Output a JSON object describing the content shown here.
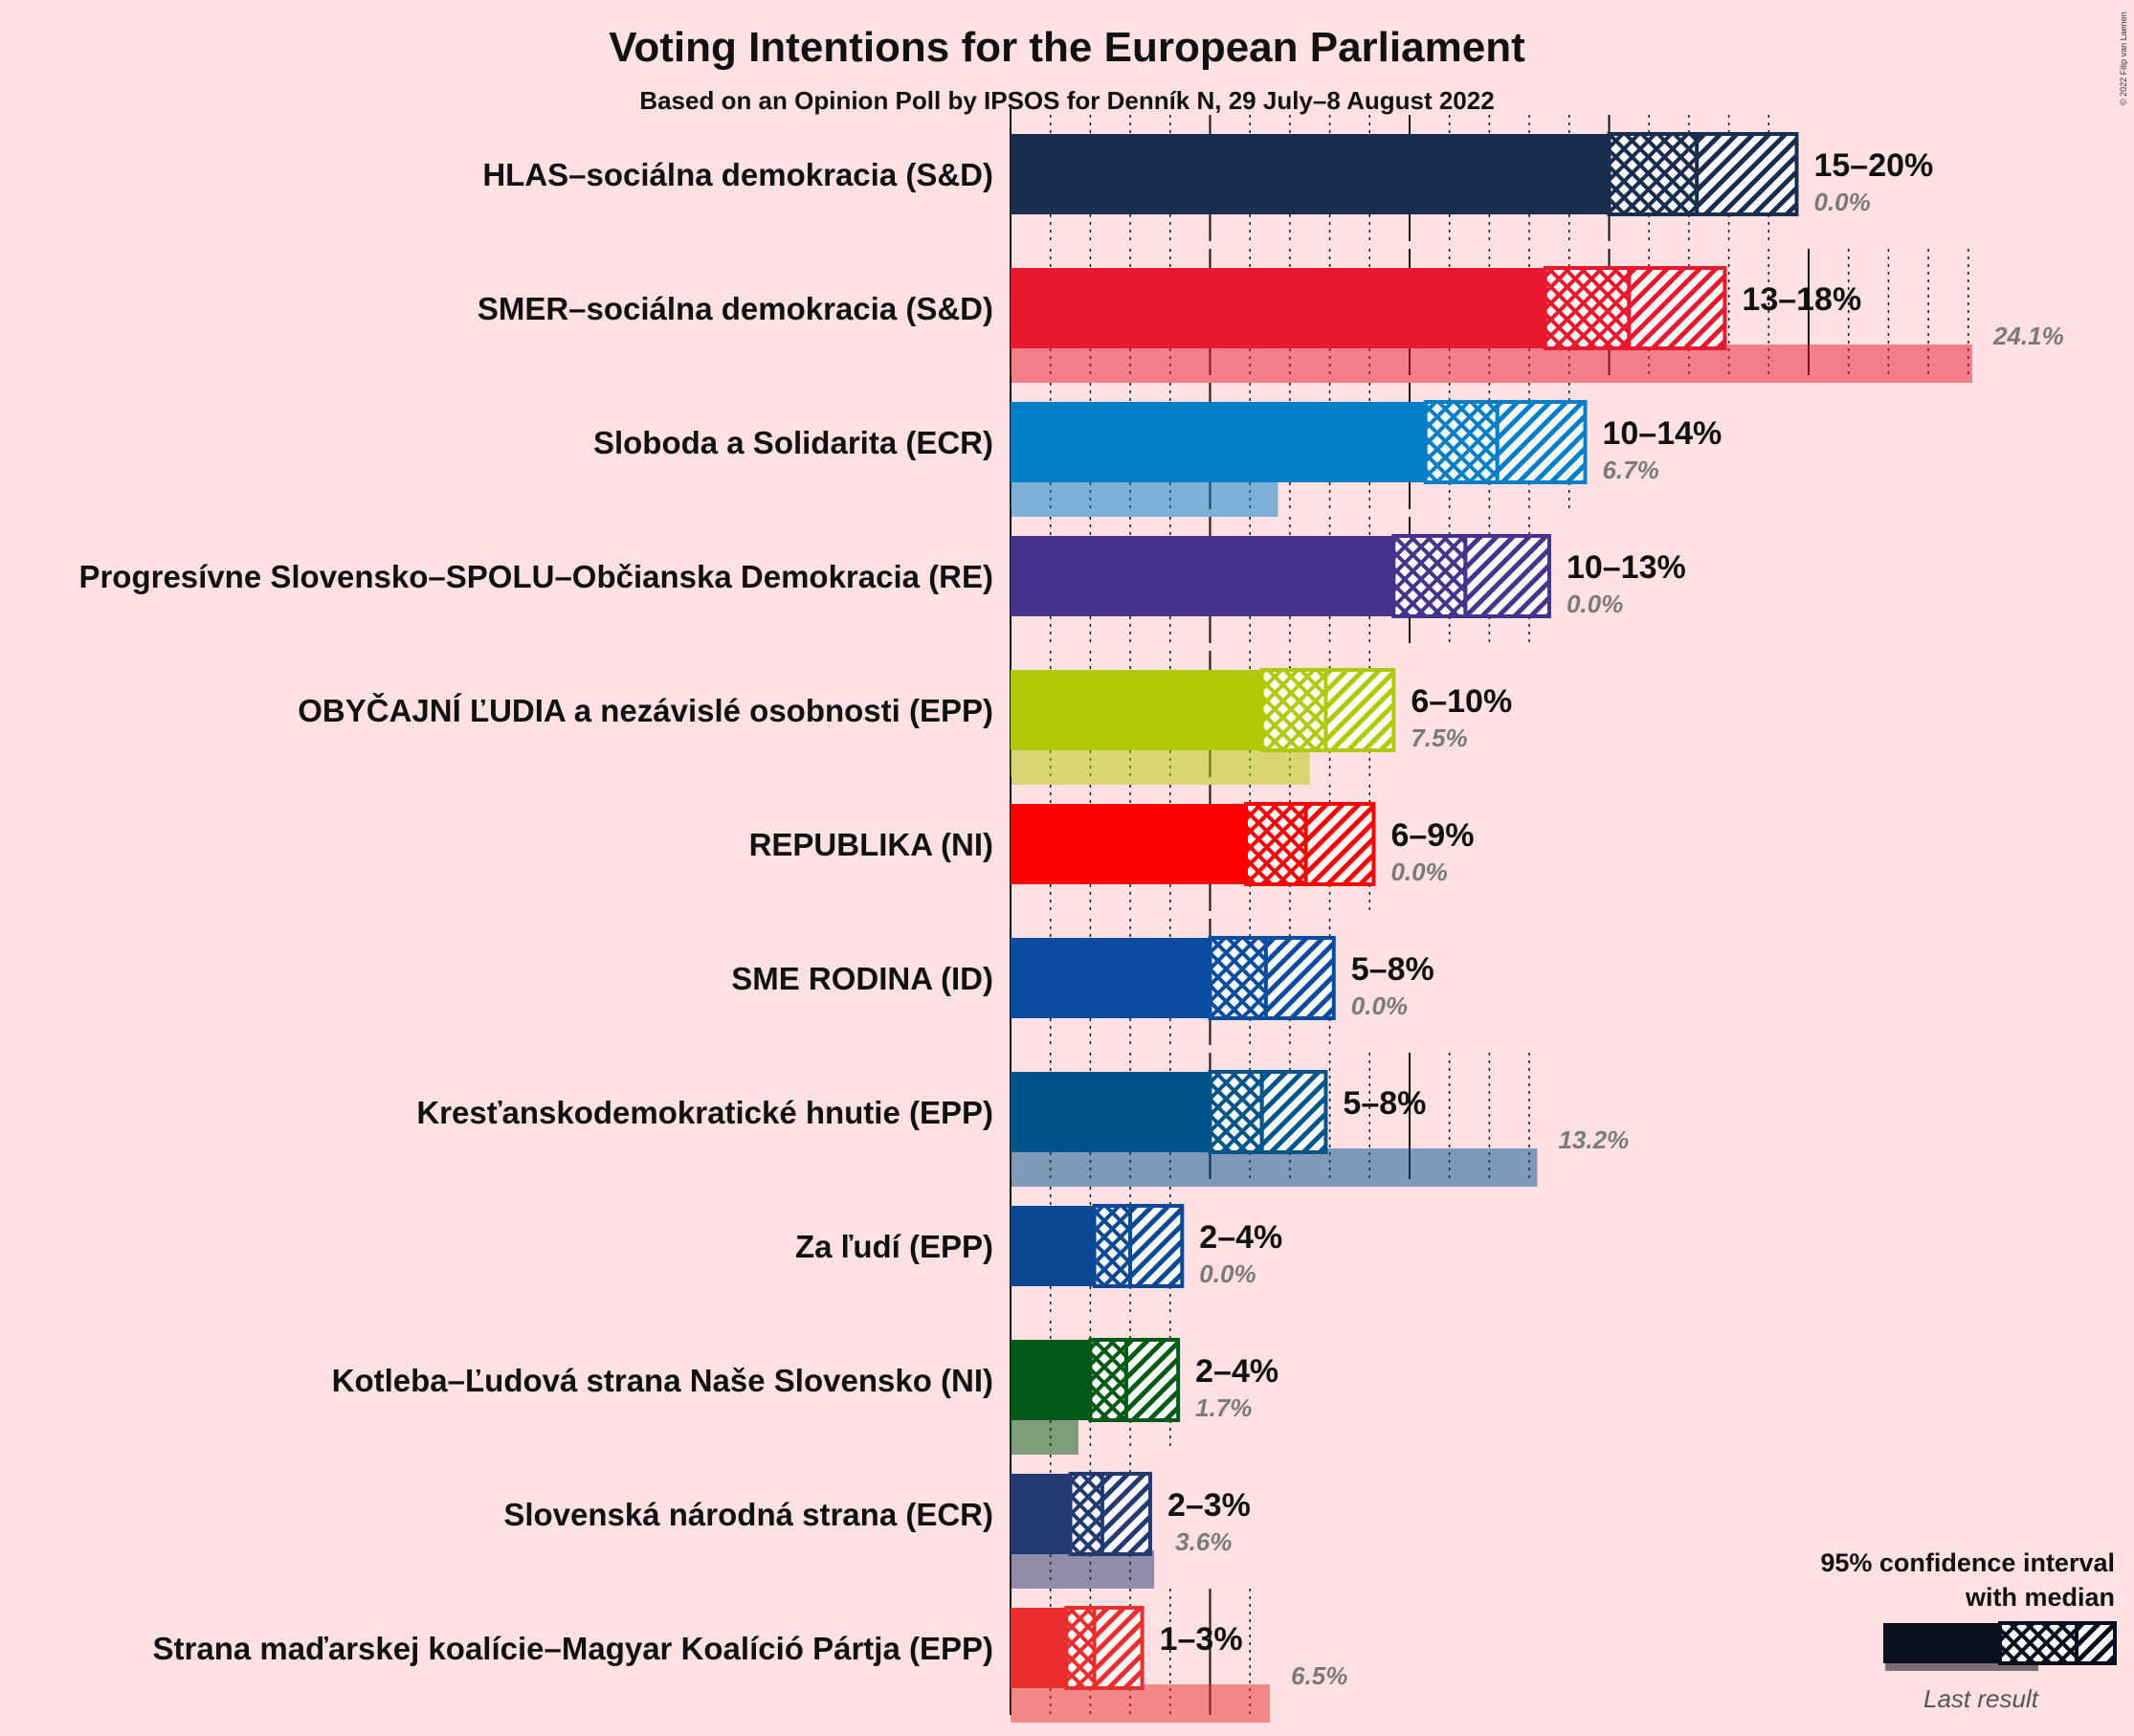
{
  "chart_data": {
    "type": "bar",
    "title": "Voting Intentions for the European Parliament",
    "subtitle": "Based on an Opinion Poll by IPSOS for Denník N, 29 July–8 August 2022",
    "xlim": [
      0,
      28
    ],
    "grid": true,
    "legend_position": "bottom-right",
    "parties": [
      {
        "name": "HLAS–sociálna demokracia (S&D)",
        "color": "#1B2D4F",
        "low": 15.0,
        "median": 17.2,
        "high": 19.7,
        "range_label": "15–20%",
        "last_result": 0.0,
        "last_label": "0.0%"
      },
      {
        "name": "SMER–sociálna demokracia (S&D)",
        "color": "#E8192E",
        "low": 13.4,
        "median": 15.5,
        "high": 17.9,
        "range_label": "13–18%",
        "last_result": 24.1,
        "last_label": "24.1%"
      },
      {
        "name": "Sloboda a Solidarita (ECR)",
        "color": "#007FC8",
        "low": 10.4,
        "median": 12.2,
        "high": 14.4,
        "range_label": "10–14%",
        "last_result": 6.7,
        "last_label": "6.7%"
      },
      {
        "name": "Progresívne Slovensko–SPOLU–Občianska Demokracia (RE)",
        "color": "#44348D",
        "low": 9.6,
        "median": 11.4,
        "high": 13.5,
        "range_label": "10–13%",
        "last_result": 0.0,
        "last_label": "0.0%"
      },
      {
        "name": "OBYČAJNÍ ĽUDIA a nezávislé osobnosti (EPP)",
        "color": "#AFCA05",
        "low": 6.3,
        "median": 7.9,
        "high": 9.6,
        "range_label": "6–10%",
        "last_result": 7.5,
        "last_label": "7.5%"
      },
      {
        "name": "REPUBLIKA (NI)",
        "color": "#FA0000",
        "low": 5.9,
        "median": 7.4,
        "high": 9.1,
        "range_label": "6–9%",
        "last_result": 0.0,
        "last_label": "0.0%"
      },
      {
        "name": "SME RODINA (ID)",
        "color": "#0C4CA0",
        "low": 5.0,
        "median": 6.4,
        "high": 8.1,
        "range_label": "5–8%",
        "last_result": 0.0,
        "last_label": "0.0%"
      },
      {
        "name": "Kresťanskodemokratické hnutie (EPP)",
        "color": "#005489",
        "low": 5.0,
        "median": 6.3,
        "high": 7.9,
        "range_label": "5–8%",
        "last_result": 13.2,
        "last_label": "13.2%"
      },
      {
        "name": "Za ľudí (EPP)",
        "color": "#0B4994",
        "low": 2.1,
        "median": 3.0,
        "high": 4.3,
        "range_label": "2–4%",
        "last_result": 0.0,
        "last_label": "0.0%"
      },
      {
        "name": "Kotleba–Ľudová strana Naše Slovensko (NI)",
        "color": "#005916",
        "low": 2.0,
        "median": 2.9,
        "high": 4.2,
        "range_label": "2–4%",
        "last_result": 1.7,
        "last_label": "1.7%"
      },
      {
        "name": "Slovenská národná strana (ECR)",
        "color": "#243871",
        "low": 1.5,
        "median": 2.3,
        "high": 3.5,
        "range_label": "2–3%",
        "last_result": 3.6,
        "last_label": "3.6%"
      },
      {
        "name": "Strana maďarskej koalície–Magyar Koalíció Pártja (EPP)",
        "color": "#E92E2E",
        "low": 1.4,
        "median": 2.1,
        "high": 3.3,
        "range_label": "1–3%",
        "last_result": 6.5,
        "last_label": "6.5%"
      }
    ]
  },
  "legend": {
    "title_line1": "95% confidence interval",
    "title_line2": "with median",
    "last_result_label": "Last result",
    "swatch_color": "#0A0F1E"
  },
  "copyright": "© 2022 Filip van Laenen"
}
